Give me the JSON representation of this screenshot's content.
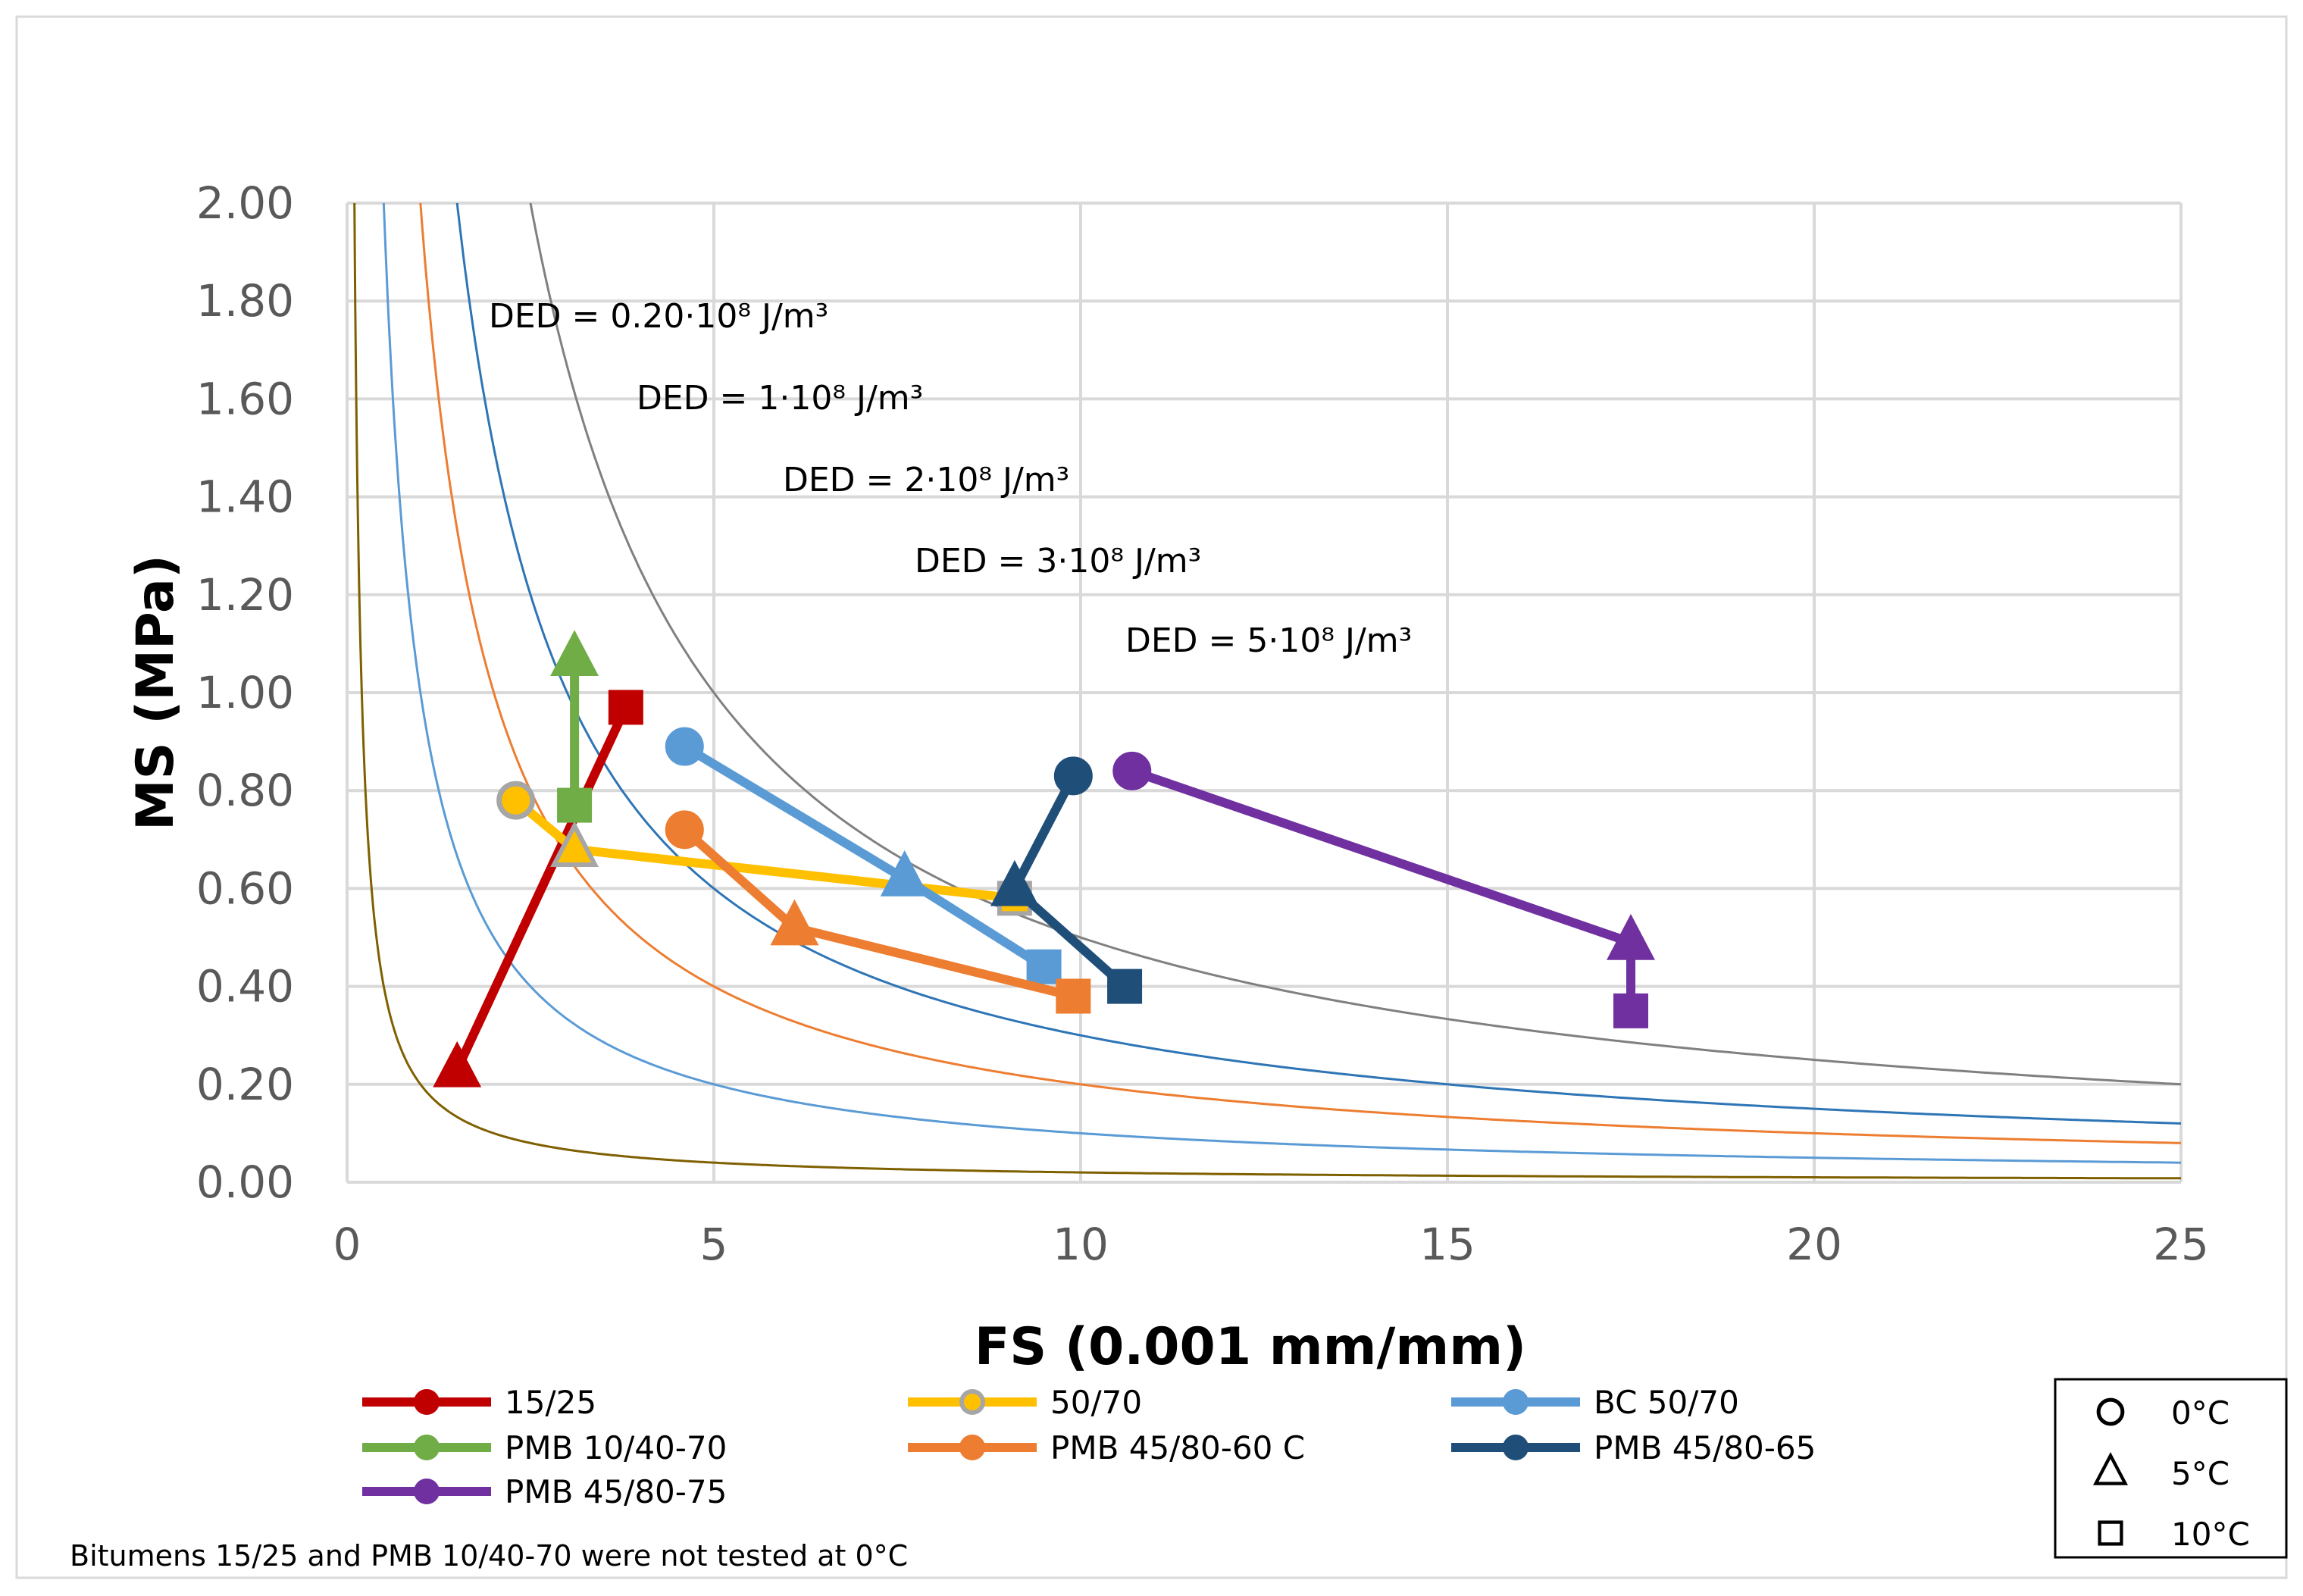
{
  "chart_data": {
    "type": "scatter",
    "xlabel": "FS (0.001 mm/mm)",
    "ylabel": "MS (MPa)",
    "xlim": [
      0,
      25
    ],
    "ylim": [
      0,
      2
    ],
    "xticks": [
      "0",
      "5",
      "10",
      "15",
      "20",
      "25"
    ],
    "xtick_values": [
      0,
      5,
      10,
      15,
      20,
      25
    ],
    "yticks": [
      "0.00",
      "0.20",
      "0.40",
      "0.60",
      "0.80",
      "1.00",
      "1.20",
      "1.40",
      "1.60",
      "1.80",
      "2.00"
    ],
    "ytick_values": [
      0,
      0.2,
      0.4,
      0.6,
      0.8,
      1.0,
      1.2,
      1.4,
      1.6,
      1.8,
      2.0
    ],
    "grid": true,
    "series": [
      {
        "name": "15/25",
        "color": "#c00000",
        "points": [
          {
            "x": 1.5,
            "y": 0.23,
            "temp": "5°C"
          },
          {
            "x": 3.8,
            "y": 0.97,
            "temp": "10°C"
          }
        ]
      },
      {
        "name": "50/70",
        "color": "#ffc000",
        "points": [
          {
            "x": 2.3,
            "y": 0.78,
            "temp": "0°C"
          },
          {
            "x": 3.1,
            "y": 0.68,
            "temp": "5°C"
          },
          {
            "x": 9.1,
            "y": 0.58,
            "temp": "10°C"
          }
        ]
      },
      {
        "name": "BC 50/70",
        "color": "#5b9bd5",
        "points": [
          {
            "x": 4.6,
            "y": 0.89,
            "temp": "0°C"
          },
          {
            "x": 7.6,
            "y": 0.62,
            "temp": "5°C"
          },
          {
            "x": 9.5,
            "y": 0.44,
            "temp": "10°C"
          }
        ]
      },
      {
        "name": "PMB 10/40-70",
        "color": "#70ad47",
        "points": [
          {
            "x": 3.1,
            "y": 1.07,
            "temp": "5°C"
          },
          {
            "x": 3.1,
            "y": 0.77,
            "temp": "10°C"
          }
        ]
      },
      {
        "name": "PMB 45/80-60 C",
        "color": "#ed7d31",
        "points": [
          {
            "x": 4.6,
            "y": 0.72,
            "temp": "0°C"
          },
          {
            "x": 6.1,
            "y": 0.52,
            "temp": "5°C"
          },
          {
            "x": 9.9,
            "y": 0.38,
            "temp": "10°C"
          }
        ]
      },
      {
        "name": "PMB 45/80-65",
        "color": "#1f4e79",
        "points": [
          {
            "x": 9.9,
            "y": 0.83,
            "temp": "0°C"
          },
          {
            "x": 9.1,
            "y": 0.6,
            "temp": "5°C"
          },
          {
            "x": 10.6,
            "y": 0.4,
            "temp": "10°C"
          }
        ]
      },
      {
        "name": "PMB 45/80-75",
        "color": "#7030a0",
        "points": [
          {
            "x": 10.7,
            "y": 0.84,
            "temp": "0°C"
          },
          {
            "x": 17.5,
            "y": 0.49,
            "temp": "5°C"
          },
          {
            "x": 17.5,
            "y": 0.35,
            "temp": "10°C"
          }
        ]
      }
    ],
    "curves": [
      {
        "name": "DED = 0.20·10⁸ J/m³",
        "ded": 0.2,
        "color": "#7f6000"
      },
      {
        "name": "DED = 1·10⁸ J/m³",
        "ded": 1,
        "color": "#5b9bd5"
      },
      {
        "name": "DED = 2·10⁸ J/m³",
        "ded": 2,
        "color": "#ed7d31"
      },
      {
        "name": "DED = 3·10⁸ J/m³",
        "ded": 3,
        "color": "#2e75b6"
      },
      {
        "name": "DED = 5·10⁸ J/m³",
        "ded": 5,
        "color": "#808080"
      }
    ],
    "marker_key": [
      {
        "shape": "circle",
        "label": "0°C"
      },
      {
        "shape": "triangle",
        "label": "5°C"
      },
      {
        "shape": "square",
        "label": "10°C"
      }
    ],
    "note": "Bitumens 15/25 and PMB 10/40-70 were not tested at 0°C"
  }
}
